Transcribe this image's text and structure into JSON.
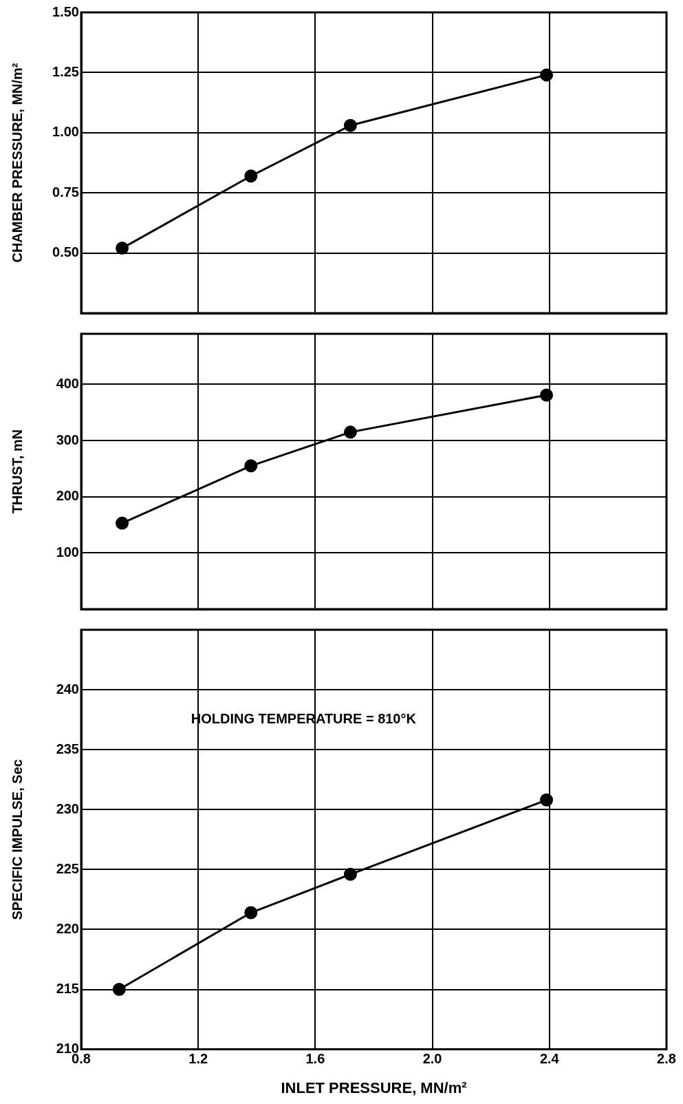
{
  "chart_data": [
    {
      "type": "line",
      "ylabel": "CHAMBER PRESSURE, MN/m²",
      "x": [
        0.94,
        1.38,
        1.72,
        2.39
      ],
      "series": [
        {
          "color": "#000000",
          "values": [
            0.52,
            0.82,
            1.03,
            1.24
          ]
        }
      ],
      "xlim": [
        0.8,
        2.8
      ],
      "xticks": [
        0.8,
        1.2,
        1.6,
        2,
        2.4,
        2.8
      ],
      "ylim": [
        0.25,
        1.5
      ],
      "yticks": [
        {
          "value": 0.5,
          "label": "0.50"
        },
        0.75,
        {
          "value": 1,
          "label": "1.00"
        },
        1.25,
        {
          "value": 1.5,
          "label": "1.50"
        }
      ],
      "grid": true,
      "legend": false,
      "marker": "circle",
      "line_style": "solid",
      "tick_labels": "y"
    },
    {
      "type": "line",
      "ylabel": "THRUST, mN",
      "x": [
        0.94,
        1.38,
        1.72,
        2.39
      ],
      "series": [
        {
          "color": "#000000",
          "values": [
            153,
            255,
            315,
            381
          ]
        }
      ],
      "xlim": [
        0.8,
        2.8
      ],
      "xticks": [
        0.8,
        1.2,
        1.6,
        2,
        2.4,
        2.8
      ],
      "ylim": [
        0,
        490
      ],
      "yticks": [
        100,
        200,
        300,
        400
      ],
      "grid": true,
      "legend": false,
      "marker": "circle",
      "line_style": "solid",
      "tick_labels": "y"
    },
    {
      "type": "line",
      "ylabel": "SPECIFIC IMPULSE, Sec",
      "xlabel": "INLET PRESSURE, MN/m²",
      "x": [
        0.93,
        1.38,
        1.72,
        2.39
      ],
      "series": [
        {
          "color": "#000000",
          "values": [
            215,
            221.4,
            224.6,
            230.8
          ]
        }
      ],
      "xlim": [
        0.8,
        2.8
      ],
      "xticks": [
        0.8,
        1.2,
        1.6,
        {
          "value": 2,
          "label": "2.0"
        },
        2.4,
        2.8
      ],
      "ylim": [
        210,
        245
      ],
      "yticks": [
        210,
        215,
        220,
        225,
        230,
        235,
        240
      ],
      "grid": true,
      "legend": false,
      "marker": "circle",
      "line_style": "solid",
      "annotations": [
        "HOLDING TEMPERATURE = 810°K"
      ]
    }
  ]
}
